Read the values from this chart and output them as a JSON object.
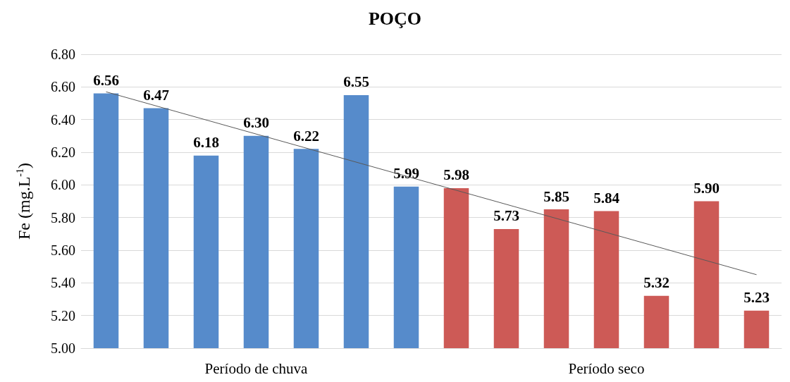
{
  "chart_data": {
    "type": "bar",
    "title": "POÇO",
    "ylabel": "Fe (mg.L$^{-1}$)",
    "categories": [
      null,
      null,
      null,
      null,
      null,
      null,
      null,
      null,
      null,
      null,
      null,
      null,
      null,
      null
    ],
    "annotations": [
      "Período de chuva",
      "Período seco"
    ],
    "series": [
      {
        "values": [
          6.56,
          6.47,
          6.18,
          6.3,
          6.22,
          6.55,
          5.99,
          5.98,
          5.73,
          5.85,
          5.84,
          5.32,
          5.9,
          5.23
        ],
        "colors": [
          "#568bcb",
          "#568bcb",
          "#568bcb",
          "#568bcb",
          "#568bcb",
          "#568bcb",
          "#568bcb",
          "#cd5a56",
          "#cd5a56",
          "#cd5a56",
          "#cd5a56",
          "#cd5a56",
          "#cd5a56",
          "#cd5a56"
        ],
        "value_labels": [
          "6.56",
          "6.47",
          "6.18",
          "6.30",
          "6.22",
          "6.55",
          "5.99",
          "5.98",
          "5.73",
          "5.85",
          "5.84",
          "5.32",
          "5.90",
          "5.23"
        ]
      },
      {
        "type": "line",
        "color": "#595959",
        "values": [
          6.57,
          null,
          null,
          null,
          null,
          null,
          null,
          null,
          null,
          null,
          null,
          null,
          null,
          5.45
        ]
      }
    ],
    "ylim": [
      5.0,
      6.8
    ],
    "yticks": [
      {
        "value": 5.0,
        "label": "5.00"
      },
      {
        "value": 5.2,
        "label": "5.20"
      },
      {
        "value": 5.4,
        "label": "5.40"
      },
      {
        "value": 5.6,
        "label": "5.60"
      },
      {
        "value": 5.8,
        "label": "5.80"
      },
      {
        "value": 6.0,
        "label": "6.00"
      },
      {
        "value": 6.2,
        "label": "6.20"
      },
      {
        "value": 6.4,
        "label": "6.40"
      },
      {
        "value": 6.6,
        "label": "6.60"
      },
      {
        "value": 6.8,
        "label": "6.80"
      }
    ],
    "grid": "y"
  }
}
